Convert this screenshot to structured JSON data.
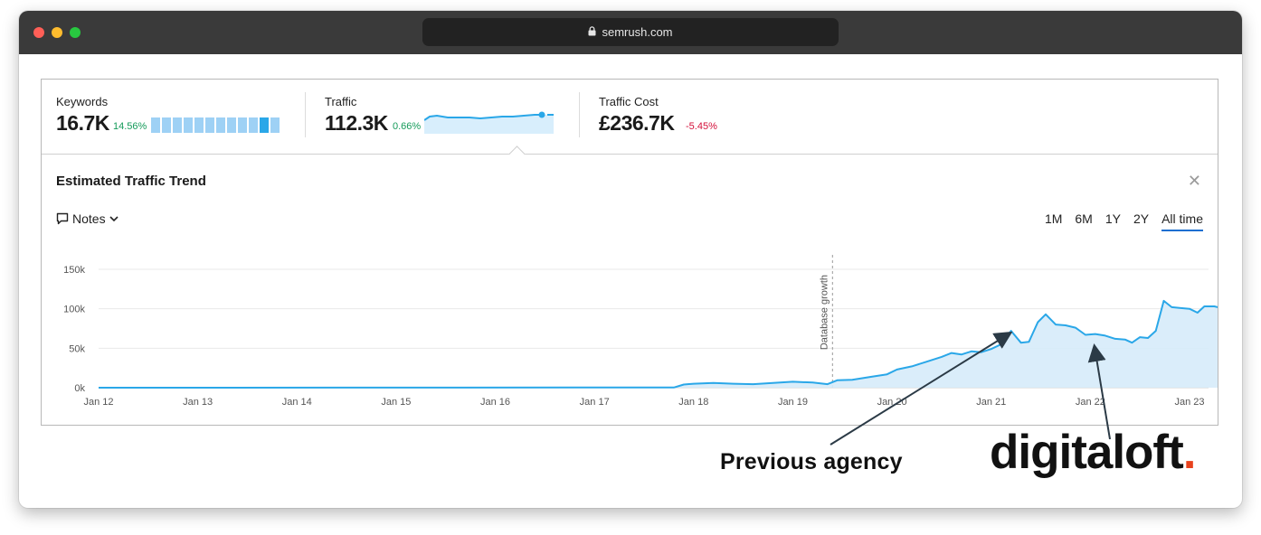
{
  "browser": {
    "url": "semrush.com"
  },
  "metrics": [
    {
      "label": "Keywords",
      "value": "16.7K",
      "delta": "14.56%",
      "trend": "up"
    },
    {
      "label": "Traffic",
      "value": "112.3K",
      "delta": "0.66%",
      "trend": "up"
    },
    {
      "label": "Traffic Cost",
      "value": "£236.7K",
      "delta": "-5.45%",
      "trend": "down"
    }
  ],
  "panel": {
    "title": "Estimated Traffic Trend",
    "notes_label": "Notes",
    "ranges": [
      "1M",
      "6M",
      "1Y",
      "2Y",
      "All time"
    ],
    "active_range": "All time"
  },
  "chart_data": {
    "type": "area",
    "title": "",
    "xlabel": "",
    "ylabel": "",
    "y_ticks": [
      "150k",
      "100k",
      "50k",
      "0k"
    ],
    "x_ticks": [
      "Jan 12",
      "Jan 13",
      "Jan 14",
      "Jan 15",
      "Jan 16",
      "Jan 17",
      "Jan 18",
      "Jan 19",
      "Jan 20",
      "Jan 21",
      "Jan 22",
      "Jan 23"
    ],
    "ylim": [
      0,
      150000
    ],
    "color": "#2aa7e8",
    "annotation": "Database growth",
    "annotation_x": 2019.4,
    "series": [
      {
        "points": [
          [
            2012.0,
            0
          ],
          [
            2017.0,
            200
          ],
          [
            2017.8,
            200
          ],
          [
            2017.9,
            4000
          ],
          [
            2018.0,
            5000
          ],
          [
            2018.2,
            6000
          ],
          [
            2018.4,
            5000
          ],
          [
            2018.6,
            4500
          ],
          [
            2018.8,
            6000
          ],
          [
            2019.0,
            7500
          ],
          [
            2019.2,
            6500
          ],
          [
            2019.35,
            4500
          ],
          [
            2019.45,
            9500
          ],
          [
            2019.6,
            10000
          ],
          [
            2019.8,
            14000
          ],
          [
            2019.95,
            17000
          ],
          [
            2020.05,
            23000
          ],
          [
            2020.2,
            27000
          ],
          [
            2020.35,
            33000
          ],
          [
            2020.5,
            39000
          ],
          [
            2020.6,
            44000
          ],
          [
            2020.7,
            42000
          ],
          [
            2020.8,
            46000
          ],
          [
            2020.9,
            45000
          ],
          [
            2021.0,
            49000
          ],
          [
            2021.1,
            55000
          ],
          [
            2021.2,
            72000
          ],
          [
            2021.3,
            57000
          ],
          [
            2021.38,
            58000
          ],
          [
            2021.47,
            83000
          ],
          [
            2021.55,
            93000
          ],
          [
            2021.65,
            80000
          ],
          [
            2021.75,
            79000
          ],
          [
            2021.85,
            76000
          ],
          [
            2021.95,
            67000
          ],
          [
            2022.05,
            68000
          ],
          [
            2022.15,
            66000
          ],
          [
            2022.25,
            62000
          ],
          [
            2022.35,
            61000
          ],
          [
            2022.42,
            57000
          ],
          [
            2022.5,
            64000
          ],
          [
            2022.58,
            63000
          ],
          [
            2022.66,
            72000
          ],
          [
            2022.74,
            110000
          ],
          [
            2022.82,
            102000
          ],
          [
            2022.9,
            101000
          ],
          [
            2023.0,
            100000
          ],
          [
            2023.08,
            95000
          ],
          [
            2023.15,
            103000
          ],
          [
            2023.25,
            103000
          ],
          [
            2023.32,
            101000
          ],
          [
            2023.4,
            112000
          ],
          [
            2023.48,
            112000
          ],
          [
            2023.55,
            110000
          ]
        ]
      }
    ]
  },
  "annotations": {
    "previous_agency": "Previous agency",
    "logo_text": "digitaloft",
    "logo_dot": "."
  }
}
